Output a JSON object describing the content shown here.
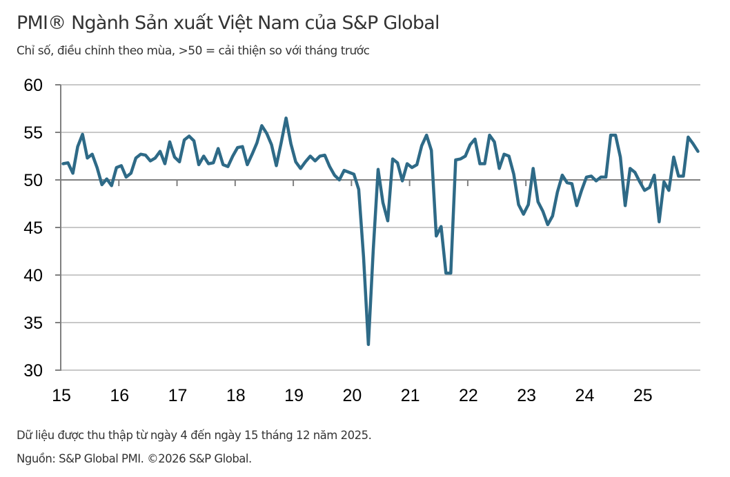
{
  "header": {
    "title": "PMI® Ngành Sản xuất Việt Nam của S&P Global",
    "subtitle": "Chỉ số, điều chỉnh theo mùa, >50 = cải thiện so với tháng trước"
  },
  "footer": {
    "note": "Dữ liệu được thu thập từ ngày 4 đến ngày 15 tháng 12 năm 2025.",
    "source": "Nguồn: S&P Global PMI. ©2026 S&P Global."
  },
  "colors": {
    "line": "#2e6a87",
    "grid": "#c8c8c8",
    "axis": "#7f7f7f",
    "reference_line": "#7f7f7f"
  },
  "chart_data": {
    "type": "line",
    "title": "PMI® Ngành Sản xuất Việt Nam của S&P Global",
    "subtitle": "Chỉ số, điều chỉnh theo mùa, >50 = cải thiện so với tháng trước",
    "xlabel": "",
    "ylabel": "",
    "ylim": [
      30,
      60
    ],
    "yticks": [
      60,
      55,
      50,
      45,
      40,
      35,
      30
    ],
    "xticks": [
      "15",
      "16",
      "17",
      "18",
      "19",
      "20",
      "21",
      "22",
      "23",
      "24",
      "25"
    ],
    "x_start": "2015-01",
    "x_end": "2025-12",
    "frequency": "monthly",
    "grid": true,
    "reference_line": 50,
    "legend": "none",
    "series": [
      {
        "name": "PMI",
        "values": [
          51.7,
          51.8,
          50.7,
          53.5,
          54.8,
          52.3,
          52.7,
          51.3,
          49.5,
          50.1,
          49.4,
          51.3,
          51.5,
          50.3,
          50.7,
          52.3,
          52.7,
          52.6,
          52.0,
          52.3,
          53.0,
          51.7,
          54.0,
          52.4,
          51.9,
          54.2,
          54.6,
          54.1,
          51.6,
          52.5,
          51.7,
          51.8,
          53.3,
          51.6,
          51.4,
          52.5,
          53.4,
          53.5,
          51.6,
          52.7,
          53.9,
          55.7,
          54.9,
          53.7,
          51.5,
          53.9,
          56.5,
          53.8,
          51.9,
          51.2,
          51.9,
          52.5,
          52.0,
          52.5,
          52.6,
          51.4,
          50.5,
          50.0,
          51.0,
          50.8,
          50.6,
          49.0,
          41.9,
          32.7,
          42.7,
          51.1,
          47.6,
          45.7,
          52.2,
          51.8,
          49.9,
          51.7,
          51.3,
          51.6,
          53.6,
          54.7,
          53.1,
          44.1,
          45.1,
          40.2,
          40.2,
          52.1,
          52.2,
          52.5,
          53.7,
          54.3,
          51.7,
          51.7,
          54.7,
          54.0,
          51.2,
          52.7,
          52.5,
          50.6,
          47.4,
          46.4,
          47.4,
          51.2,
          47.7,
          46.7,
          45.3,
          46.2,
          48.7,
          50.5,
          49.7,
          49.6,
          47.3,
          48.9,
          50.3,
          50.4,
          49.9,
          50.3,
          50.3,
          54.7,
          54.7,
          52.4,
          47.3,
          51.2,
          50.8,
          49.8,
          48.9,
          49.2,
          50.5,
          45.6,
          49.8,
          48.9,
          52.4,
          50.4,
          50.4,
          54.5,
          53.8,
          53.0
        ]
      }
    ]
  }
}
